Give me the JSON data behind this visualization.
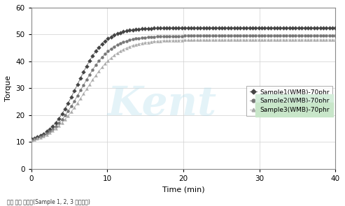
{
  "title": "",
  "xlabel": "Time (min)",
  "ylabel": "Torque",
  "xlim": [
    0,
    40
  ],
  "ylim": [
    0,
    60
  ],
  "xticks": [
    0,
    10,
    20,
    30,
    40
  ],
  "yticks": [
    0,
    10,
    20,
    30,
    40,
    50,
    60
  ],
  "legend_labels": [
    "Sample1(WMB)-70phr",
    "Sample2(WMB)-70phr",
    "Sample3(WMB)-70phr"
  ],
  "series_colors": [
    "#444444",
    "#777777",
    "#aaaaaa"
  ],
  "markers": [
    "D",
    "o",
    "^"
  ],
  "marker_sizes": [
    3,
    3,
    3
  ],
  "background_color": "#ffffff",
  "watermark_text": "Kent",
  "watermark_color": "#a8d8ea",
  "watermark_alpha": 0.3,
  "grid_color": "#d0d0d0",
  "footnote": "가교 특성 그래표(Sample 1, 2, 3 평가비교)",
  "curve_params": {
    "s1": {
      "y0": 9.5,
      "ymax": 52.5,
      "t_half": 6.0,
      "k": 0.55
    },
    "s2": {
      "y0": 9.2,
      "ymax": 49.5,
      "t_half": 6.5,
      "k": 0.5
    },
    "s3": {
      "y0": 9.0,
      "ymax": 48.0,
      "t_half": 7.0,
      "k": 0.45
    }
  },
  "n_marks": 100,
  "legend_item2_bg": "#d4edda",
  "legend_item3_bg": "#c8e6c9"
}
